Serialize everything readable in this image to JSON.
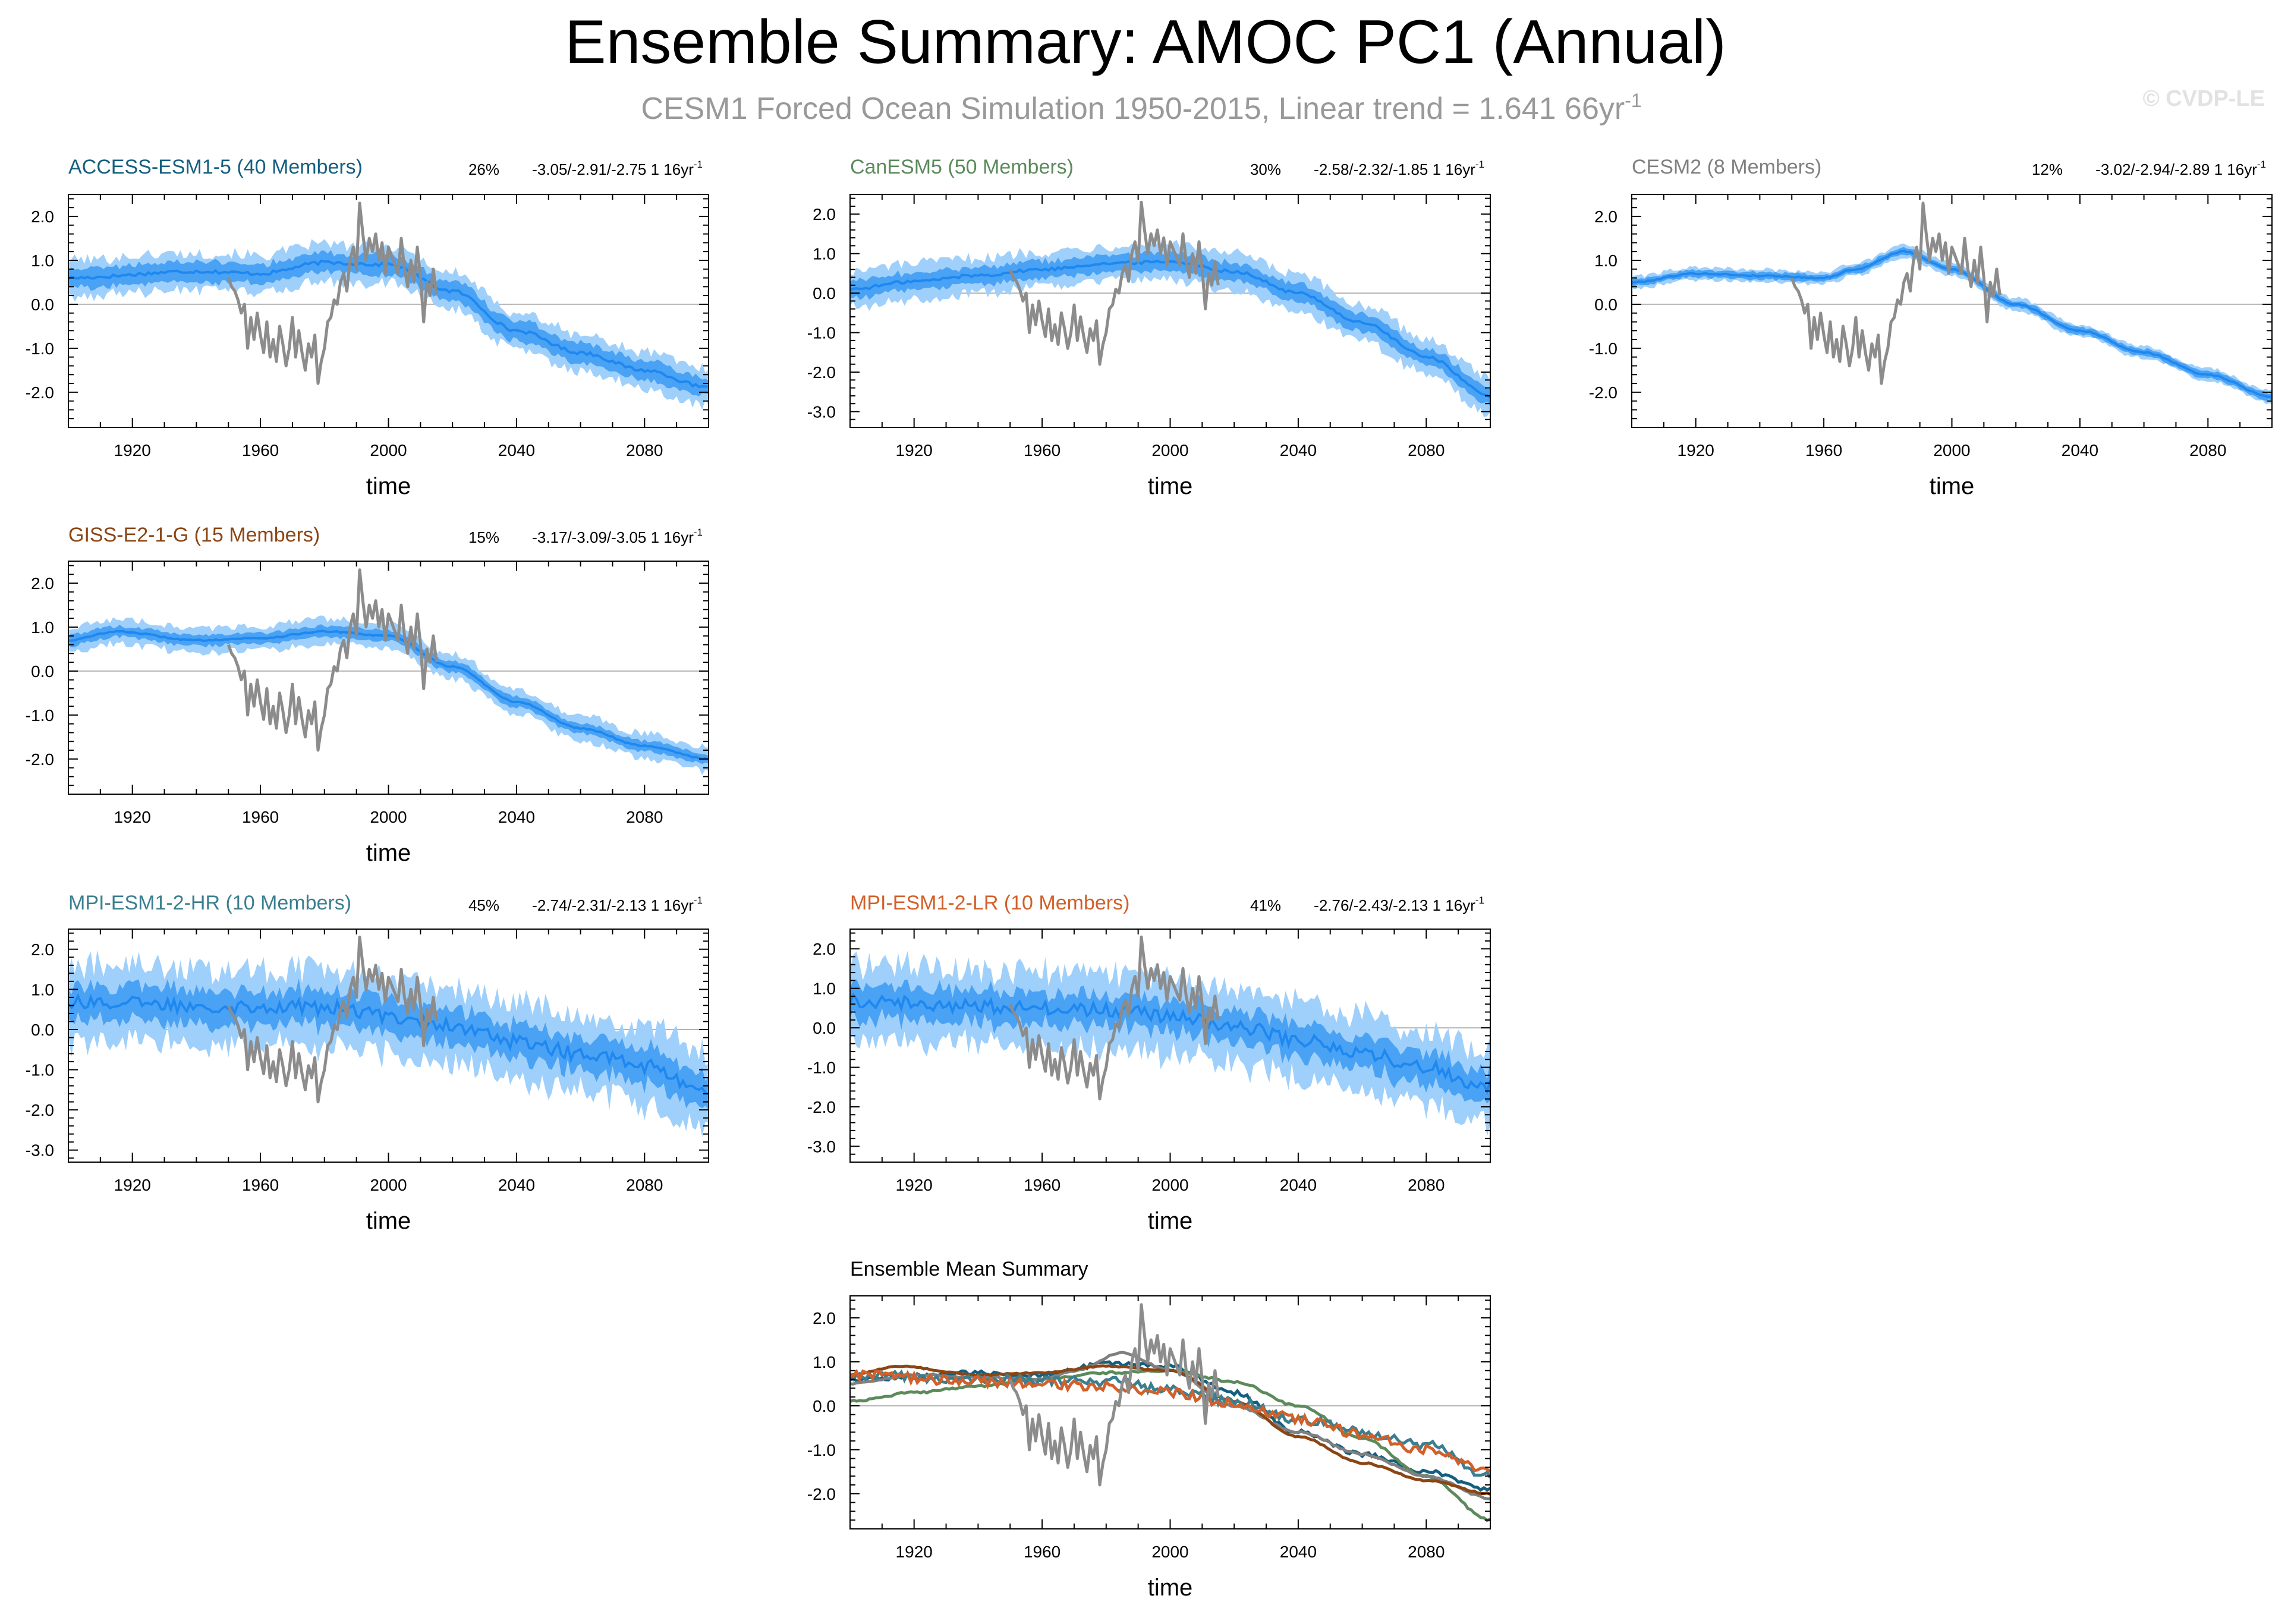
{
  "header": {
    "title": "Ensemble Summary: AMOC PC1 (Annual)",
    "subtitle": "CESM1 Forced Ocean Simulation 1950-2015, Linear trend = 1.641 66yr",
    "subtitle_sup": "-1",
    "watermark": "© CVDP-LE"
  },
  "colors": {
    "band_outer": "#9fd0fb",
    "band_inner": "#4aa2f4",
    "mean_line": "#1e88f0",
    "obs": "#8c8c8c",
    "zero": "#b4b4b4"
  },
  "observation": {
    "name": "CESM1 Forced Ocean Simulation",
    "years": [
      1950,
      1951,
      1952,
      1953,
      1954,
      1955,
      1956,
      1957,
      1958,
      1959,
      1960,
      1961,
      1962,
      1963,
      1964,
      1965,
      1966,
      1967,
      1968,
      1969,
      1970,
      1971,
      1972,
      1973,
      1974,
      1975,
      1976,
      1977,
      1978,
      1979,
      1980,
      1981,
      1982,
      1983,
      1984,
      1985,
      1986,
      1987,
      1988,
      1989,
      1990,
      1991,
      1992,
      1993,
      1994,
      1995,
      1996,
      1997,
      1998,
      1999,
      2000,
      2001,
      2002,
      2003,
      2004,
      2005,
      2006,
      2007,
      2008,
      2009,
      2010,
      2011,
      2012,
      2013,
      2014,
      2015
    ],
    "values": [
      0.6,
      0.4,
      0.3,
      0.1,
      -0.2,
      0.0,
      -1.0,
      -0.3,
      -0.8,
      -0.2,
      -0.7,
      -1.1,
      -0.4,
      -1.2,
      -0.8,
      -1.3,
      -0.5,
      -0.9,
      -1.4,
      -1.0,
      -0.3,
      -1.2,
      -0.6,
      -1.1,
      -1.5,
      -0.9,
      -1.2,
      -0.7,
      -1.8,
      -1.3,
      -1.0,
      -0.4,
      -0.3,
      0.1,
      0.0,
      0.5,
      0.7,
      0.3,
      1.0,
      1.3,
      0.8,
      2.3,
      1.6,
      1.0,
      1.5,
      1.2,
      1.6,
      1.0,
      1.4,
      0.7,
      1.3,
      1.1,
      0.9,
      0.7,
      1.5,
      0.8,
      0.4,
      1.0,
      0.5,
      1.3,
      0.6,
      -0.4,
      0.5,
      0.2,
      0.8,
      0.2
    ]
  },
  "panels": [
    {
      "id": "access",
      "title": "ACCESS-ESM1-5 (40 Members)",
      "title_color": "#145f7f",
      "pct": "26%",
      "stats": "-3.05/-2.91/-2.75 1 16yr",
      "stats_sup": "-1",
      "xlabel": "time"
    },
    {
      "id": "canesm",
      "title": "CanESM5 (50 Members)",
      "title_color": "#5c8a5c",
      "pct": "30%",
      "stats": "-2.58/-2.32/-1.85 1 16yr",
      "stats_sup": "-1",
      "xlabel": "time"
    },
    {
      "id": "cesm2",
      "title": "CESM2 (8 Members)",
      "title_color": "#808080",
      "pct": "12%",
      "stats": "-3.02/-2.94/-2.89 1 16yr",
      "stats_sup": "-1",
      "xlabel": "time"
    },
    {
      "id": "giss",
      "title": "GISS-E2-1-G (15 Members)",
      "title_color": "#8b4513",
      "pct": "15%",
      "stats": "-3.17/-3.09/-3.05 1 16yr",
      "stats_sup": "-1",
      "xlabel": "time"
    },
    {
      "id": "mpihr",
      "title": "MPI-ESM1-2-HR (10 Members)",
      "title_color": "#3b7f8f",
      "pct": "45%",
      "stats": "-2.74/-2.31/-2.13 1 16yr",
      "stats_sup": "-1",
      "xlabel": "time"
    },
    {
      "id": "mpilr",
      "title": "MPI-ESM1-2-LR (10 Members)",
      "title_color": "#d2602a",
      "pct": "41%",
      "stats": "-2.76/-2.43/-2.13 1 16yr",
      "stats_sup": "-1",
      "xlabel": "time"
    },
    {
      "id": "summary",
      "title": "Ensemble Mean Summary",
      "title_color": "#000000",
      "xlabel": "time"
    }
  ],
  "chart_data": [
    {
      "type": "area",
      "id": "access",
      "title": "ACCESS-ESM1-5 (40 Members)",
      "xlabel": "time",
      "xlim": [
        1900,
        2100
      ],
      "ylim": [
        -2.8,
        2.5
      ],
      "xticks": [
        1920,
        1960,
        2000,
        2040,
        2080
      ],
      "xtick_labels": [
        "1920",
        "1960",
        "2000",
        "2040",
        "2080"
      ],
      "yticks": [
        2.0,
        1.0,
        0.0,
        -1.0,
        -2.0
      ],
      "ytick_labels": [
        "2.0",
        "1.0",
        "0.0",
        "-1.0",
        "-2.0"
      ],
      "mean_keyframes": {
        "x": [
          1900,
          1940,
          1960,
          1980,
          2000,
          2020,
          2040,
          2060,
          2080,
          2100
        ],
        "y": [
          0.6,
          0.75,
          0.7,
          0.95,
          0.9,
          0.3,
          -0.6,
          -1.1,
          -1.5,
          -1.9
        ]
      },
      "inner_halfwidth": 0.22,
      "outer_halfwidth": 0.42,
      "series_color": "#1e88f0"
    },
    {
      "type": "area",
      "id": "canesm",
      "title": "CanESM5 (50 Members)",
      "xlabel": "time",
      "xlim": [
        1900,
        2100
      ],
      "ylim": [
        -3.4,
        2.5
      ],
      "xticks": [
        1920,
        1960,
        2000,
        2040,
        2080
      ],
      "xtick_labels": [
        "1920",
        "1960",
        "2000",
        "2040",
        "2080"
      ],
      "yticks": [
        2.0,
        1.0,
        0.0,
        -1.0,
        -2.0,
        -3.0
      ],
      "ytick_labels": [
        "2.0",
        "1.0",
        "0.0",
        "-1.0",
        "-2.0",
        "-3.0"
      ],
      "mean_keyframes": {
        "x": [
          1900,
          1920,
          1940,
          1960,
          1980,
          2000,
          2020,
          2040,
          2060,
          2080,
          2100
        ],
        "y": [
          0.1,
          0.3,
          0.45,
          0.6,
          0.75,
          0.8,
          0.55,
          0.0,
          -0.75,
          -1.6,
          -2.6
        ]
      },
      "inner_halfwidth": 0.22,
      "outer_halfwidth": 0.45,
      "series_color": "#1e88f0"
    },
    {
      "type": "area",
      "id": "cesm2",
      "title": "CESM2 (8 Members)",
      "xlabel": "time",
      "xlim": [
        1900,
        2100
      ],
      "ylim": [
        -2.8,
        2.5
      ],
      "xticks": [
        1920,
        1960,
        2000,
        2040,
        2080
      ],
      "xtick_labels": [
        "1920",
        "1960",
        "2000",
        "2040",
        "2080"
      ],
      "yticks": [
        2.0,
        1.0,
        0.0,
        -1.0,
        -2.0
      ],
      "ytick_labels": [
        "2.0",
        "1.0",
        "0.0",
        "-1.0",
        "-2.0"
      ],
      "mean_keyframes": {
        "x": [
          1900,
          1920,
          1940,
          1960,
          1970,
          1985,
          2000,
          2020,
          2040,
          2060,
          2080,
          2100
        ],
        "y": [
          0.5,
          0.7,
          0.65,
          0.6,
          0.8,
          1.2,
          0.8,
          0.0,
          -0.6,
          -1.1,
          -1.6,
          -2.1
        ]
      },
      "inner_halfwidth": 0.08,
      "outer_halfwidth": 0.14,
      "series_color": "#1e88f0"
    },
    {
      "type": "area",
      "id": "giss",
      "title": "GISS-E2-1-G (15 Members)",
      "xlabel": "time",
      "xlim": [
        1900,
        2100
      ],
      "ylim": [
        -2.8,
        2.5
      ],
      "xticks": [
        1920,
        1960,
        2000,
        2040,
        2080
      ],
      "xtick_labels": [
        "1920",
        "1960",
        "2000",
        "2040",
        "2080"
      ],
      "yticks": [
        2.0,
        1.0,
        0.0,
        -1.0,
        -2.0
      ],
      "ytick_labels": [
        "2.0",
        "1.0",
        "0.0",
        "-1.0",
        "-2.0"
      ],
      "mean_keyframes": {
        "x": [
          1900,
          1915,
          1940,
          1960,
          1980,
          2000,
          2020,
          2040,
          2060,
          2080,
          2100
        ],
        "y": [
          0.7,
          0.9,
          0.7,
          0.75,
          0.9,
          0.8,
          0.1,
          -0.7,
          -1.3,
          -1.7,
          -2.0
        ]
      },
      "inner_halfwidth": 0.12,
      "outer_halfwidth": 0.28,
      "series_color": "#1e88f0"
    },
    {
      "type": "area",
      "id": "mpihr",
      "title": "MPI-ESM1-2-HR (10 Members)",
      "xlabel": "time",
      "xlim": [
        1900,
        2100
      ],
      "ylim": [
        -3.3,
        2.5
      ],
      "xticks": [
        1920,
        1960,
        2000,
        2040,
        2080
      ],
      "xtick_labels": [
        "1920",
        "1960",
        "2000",
        "2040",
        "2080"
      ],
      "yticks": [
        2.0,
        1.0,
        0.0,
        -1.0,
        -2.0,
        -3.0
      ],
      "ytick_labels": [
        "2.0",
        "1.0",
        "0.0",
        "-1.0",
        "-2.0",
        "-3.0"
      ],
      "mean_keyframes": {
        "x": [
          1900,
          1940,
          1980,
          2000,
          2020,
          2040,
          2060,
          2080,
          2100
        ],
        "y": [
          0.7,
          0.6,
          0.55,
          0.35,
          0.1,
          -0.3,
          -0.6,
          -0.9,
          -1.6
        ]
      },
      "inner_halfwidth": 0.42,
      "outer_halfwidth": 0.95,
      "series_color": "#1e88f0"
    },
    {
      "type": "area",
      "id": "mpilr",
      "title": "MPI-ESM1-2-LR (10 Members)",
      "xlabel": "time",
      "xlim": [
        1900,
        2100
      ],
      "ylim": [
        -3.4,
        2.5
      ],
      "xticks": [
        1920,
        1960,
        2000,
        2040,
        2080
      ],
      "xtick_labels": [
        "1920",
        "1960",
        "2000",
        "2040",
        "2080"
      ],
      "yticks": [
        2.0,
        1.0,
        0.0,
        -1.0,
        -2.0,
        -3.0
      ],
      "ytick_labels": [
        "2.0",
        "1.0",
        "0.0",
        "-1.0",
        "-2.0",
        "-3.0"
      ],
      "mean_keyframes": {
        "x": [
          1900,
          1940,
          1980,
          2000,
          2020,
          2040,
          2060,
          2080,
          2100
        ],
        "y": [
          0.7,
          0.55,
          0.45,
          0.3,
          0.05,
          -0.3,
          -0.65,
          -1.0,
          -1.5
        ]
      },
      "inner_halfwidth": 0.42,
      "outer_halfwidth": 0.95,
      "series_color": "#1e88f0"
    },
    {
      "type": "line",
      "id": "summary",
      "title": "Ensemble Mean Summary",
      "xlabel": "time",
      "xlim": [
        1900,
        2100
      ],
      "ylim": [
        -2.8,
        2.5
      ],
      "xticks": [
        1920,
        1960,
        2000,
        2040,
        2080
      ],
      "xtick_labels": [
        "1920",
        "1960",
        "2000",
        "2040",
        "2080"
      ],
      "yticks": [
        2.0,
        1.0,
        0.0,
        -1.0,
        -2.0
      ],
      "ytick_labels": [
        "2.0",
        "1.0",
        "0.0",
        "-1.0",
        "-2.0"
      ],
      "series": [
        {
          "name": "ACCESS-ESM1-5",
          "color": "#145f7f",
          "source": "access",
          "noise": 0.1
        },
        {
          "name": "CanESM5",
          "color": "#5c8a5c",
          "source": "canesm",
          "noise": 0.05
        },
        {
          "name": "CESM2",
          "color": "#808080",
          "source": "cesm2",
          "noise": 0.04
        },
        {
          "name": "GISS-E2-1-G",
          "color": "#8b4513",
          "source": "giss",
          "noise": 0.03
        },
        {
          "name": "MPI-ESM1-2-HR",
          "color": "#3b7f8f",
          "source": "mpihr",
          "noise": 0.22
        },
        {
          "name": "MPI-ESM1-2-LR",
          "color": "#d2602a",
          "source": "mpilr",
          "noise": 0.22
        }
      ]
    }
  ]
}
